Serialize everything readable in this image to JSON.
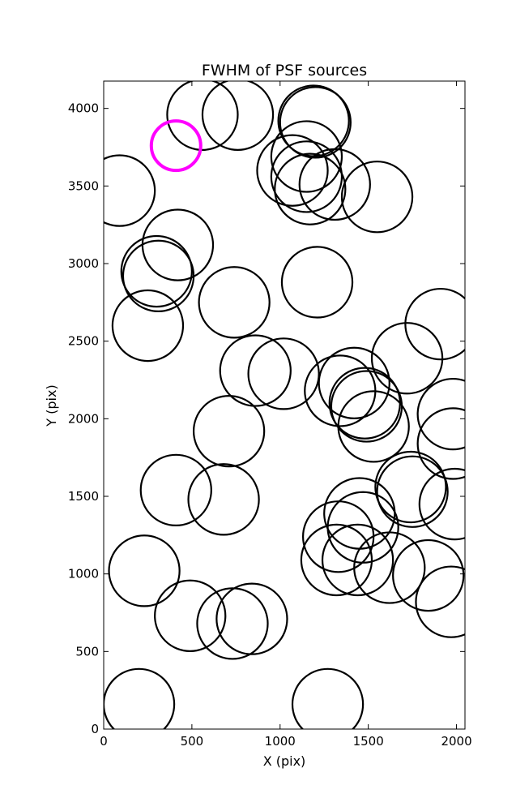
{
  "chart_data": {
    "type": "scatter",
    "title": "FWHM of PSF sources",
    "xlabel": "X (pix)",
    "ylabel": "Y (pix)",
    "xlim": [
      0,
      2048
    ],
    "ylim": [
      0,
      4176
    ],
    "xticks": [
      0,
      500,
      1000,
      1500,
      2000
    ],
    "yticks": [
      0,
      500,
      1000,
      1500,
      2000,
      2500,
      3000,
      3500,
      4000
    ],
    "xtick_labels": [
      "0",
      "500",
      "1000",
      "1500",
      "2000"
    ],
    "ytick_labels": [
      "0",
      "500",
      "1000",
      "1500",
      "2000",
      "2500",
      "3000",
      "3500",
      "4000"
    ],
    "grid": false,
    "marker_radius_pix": 200,
    "colors": {
      "source": "#000000",
      "highlight": "#ff00ff"
    },
    "sources": [
      {
        "x": 90,
        "y": 3470
      },
      {
        "x": 560,
        "y": 3960
      },
      {
        "x": 760,
        "y": 3960
      },
      {
        "x": 1190,
        "y": 3920
      },
      {
        "x": 1200,
        "y": 3910
      },
      {
        "x": 1150,
        "y": 3690
      },
      {
        "x": 1070,
        "y": 3600
      },
      {
        "x": 1150,
        "y": 3560
      },
      {
        "x": 1170,
        "y": 3480
      },
      {
        "x": 1310,
        "y": 3510
      },
      {
        "x": 1550,
        "y": 3430
      },
      {
        "x": 420,
        "y": 3120
      },
      {
        "x": 300,
        "y": 2950
      },
      {
        "x": 310,
        "y": 2920
      },
      {
        "x": 1210,
        "y": 2880
      },
      {
        "x": 740,
        "y": 2750
      },
      {
        "x": 250,
        "y": 2600
      },
      {
        "x": 1910,
        "y": 2610
      },
      {
        "x": 1720,
        "y": 2390
      },
      {
        "x": 860,
        "y": 2310
      },
      {
        "x": 1020,
        "y": 2290
      },
      {
        "x": 1420,
        "y": 2230
      },
      {
        "x": 1340,
        "y": 2180
      },
      {
        "x": 1480,
        "y": 2100
      },
      {
        "x": 1490,
        "y": 2080
      },
      {
        "x": 1530,
        "y": 1950
      },
      {
        "x": 1980,
        "y": 2030
      },
      {
        "x": 1980,
        "y": 1840
      },
      {
        "x": 710,
        "y": 1920
      },
      {
        "x": 410,
        "y": 1540
      },
      {
        "x": 680,
        "y": 1480
      },
      {
        "x": 1740,
        "y": 1560
      },
      {
        "x": 1750,
        "y": 1530
      },
      {
        "x": 1990,
        "y": 1450
      },
      {
        "x": 1450,
        "y": 1390
      },
      {
        "x": 1470,
        "y": 1300
      },
      {
        "x": 1330,
        "y": 1240
      },
      {
        "x": 1320,
        "y": 1090
      },
      {
        "x": 1440,
        "y": 1090
      },
      {
        "x": 1620,
        "y": 1040
      },
      {
        "x": 1840,
        "y": 990
      },
      {
        "x": 1970,
        "y": 820
      },
      {
        "x": 230,
        "y": 1020
      },
      {
        "x": 490,
        "y": 730
      },
      {
        "x": 730,
        "y": 680
      },
      {
        "x": 840,
        "y": 710
      },
      {
        "x": 200,
        "y": 160
      },
      {
        "x": 1270,
        "y": 160
      }
    ],
    "highlight": {
      "x": 410,
      "y": 3760,
      "radius_pix": 140
    }
  }
}
